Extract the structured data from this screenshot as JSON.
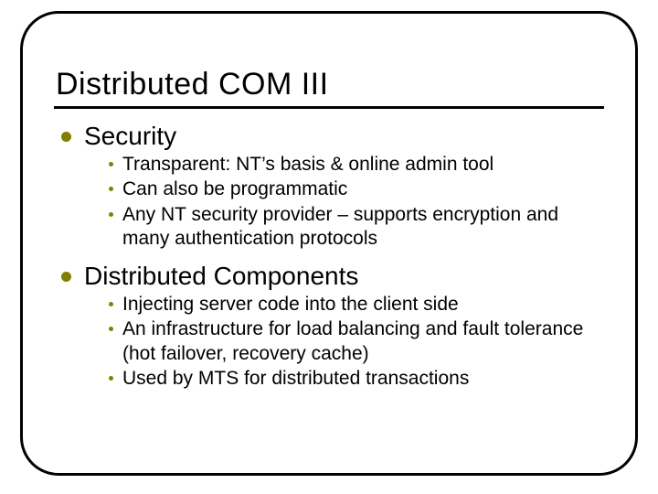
{
  "colors": {
    "background": "#ffffff",
    "border": "#000000",
    "text": "#000000",
    "bullet": "#808000",
    "sub_bullet": "#808000",
    "underline": "#000000"
  },
  "typography": {
    "font_family": "Comic Sans MS",
    "title_fontsize": 34,
    "heading_fontsize": 28,
    "body_fontsize": 21
  },
  "frame": {
    "border_width": 3,
    "border_radius": 42
  },
  "title": "Distributed COM III",
  "sections": [
    {
      "heading": "Security",
      "items": [
        "Transparent: NT’s basis & online admin tool",
        "Can also be programmatic",
        "Any NT security provider – supports encryption and many authentication protocols"
      ]
    },
    {
      "heading": "Distributed Components",
      "items": [
        "Injecting server code into the client side",
        "An infrastructure for load balancing and fault tolerance (hot failover, recovery cache)",
        "Used by MTS for distributed transactions"
      ]
    }
  ]
}
